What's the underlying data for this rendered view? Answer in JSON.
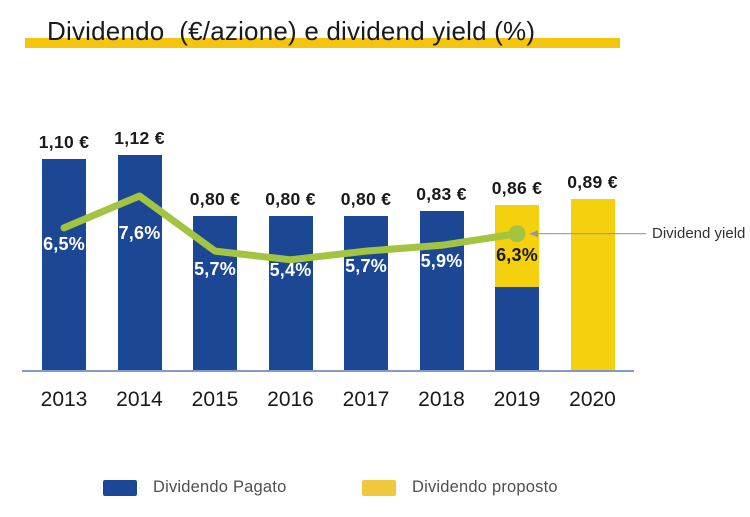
{
  "title": {
    "text": "Dividendo  (€/azione) e dividend yield (%)",
    "highlight_color": "#f5c50d"
  },
  "annotation": {
    "dividend_yield_label": "Dividend yield"
  },
  "legend": {
    "items": [
      {
        "label": "Dividendo Pagato",
        "color": "#1c4795"
      },
      {
        "label": "Dividendo proposto",
        "color": "#efc83e"
      }
    ]
  },
  "chart_data": {
    "type": "bar",
    "title": "Dividendo  (€/azione) e dividend yield (%)",
    "categories": [
      "2013",
      "2014",
      "2015",
      "2016",
      "2017",
      "2018",
      "2019",
      "2020"
    ],
    "series": [
      {
        "name": "Dividendo Pagato",
        "values": [
          1.1,
          1.12,
          0.8,
          0.8,
          0.8,
          0.83,
          0.43,
          0
        ]
      },
      {
        "name": "Dividendo proposto",
        "values": [
          0,
          0,
          0,
          0,
          0,
          0,
          0.43,
          0.89
        ]
      }
    ],
    "bar_totals": [
      1.1,
      1.12,
      0.8,
      0.8,
      0.8,
      0.83,
      0.86,
      0.89
    ],
    "bar_value_labels": [
      "1,10 €",
      "1,12 €",
      "0,80 €",
      "0,80 €",
      "0,80 €",
      "0,83 €",
      "0,86 €",
      "0,89 €"
    ],
    "line_series": {
      "name": "Dividend yield",
      "unit": "%",
      "values": [
        6.5,
        7.6,
        5.7,
        5.4,
        5.7,
        5.9,
        6.3,
        null
      ],
      "labels": [
        "6,5%",
        "7,6%",
        "5,7%",
        "5,4%",
        "5,7%",
        "5,9%",
        "6,3%"
      ]
    },
    "colors": {
      "paid_bar": "#1c4795",
      "proposed_bar": "#f5d00e",
      "yield_line": "#a3c440",
      "axis_line": "#8598cc",
      "pct_label_on_blue": "#ffffff",
      "pct_label_on_yellow": "#1a1a1a",
      "connector": "#999999"
    },
    "legend_position": "bottom",
    "grid": false,
    "ylim_eur": [
      0,
      1.2
    ]
  }
}
